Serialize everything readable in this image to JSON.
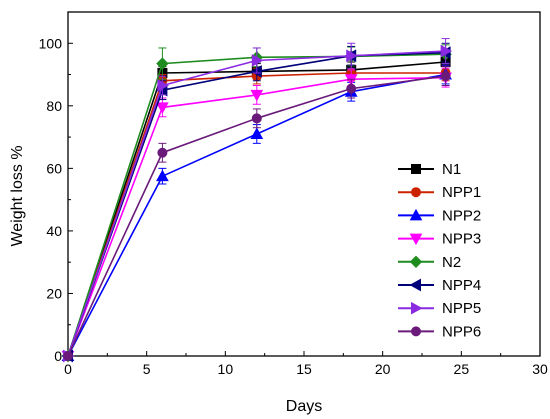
{
  "chart_data": {
    "type": "line",
    "xlabel": "Days",
    "ylabel": "Weight loss %",
    "xlim": [
      0,
      30
    ],
    "ylim": [
      0,
      110
    ],
    "xticks": [
      0,
      5,
      10,
      15,
      20,
      25,
      30
    ],
    "yticks": [
      0,
      20,
      40,
      60,
      80,
      100
    ],
    "grid": false,
    "legend_position": "right",
    "x": [
      0,
      6,
      12,
      18,
      24
    ],
    "series": [
      {
        "name": "N1",
        "color": "#000000",
        "marker": "square",
        "values": [
          0,
          90.5,
          91,
          91.5,
          94
        ],
        "errors": [
          0,
          2,
          2.5,
          2.5,
          2.5
        ]
      },
      {
        "name": "NPP1",
        "color": "#cc2200",
        "marker": "circle",
        "values": [
          0,
          88,
          89.5,
          90.5,
          90.5
        ],
        "errors": [
          0,
          2,
          2.5,
          2.5,
          2.5
        ]
      },
      {
        "name": "NPP2",
        "color": "#0000ff",
        "marker": "triangle-up",
        "values": [
          0,
          57.5,
          71,
          84.5,
          90
        ],
        "errors": [
          0,
          2.5,
          3,
          3,
          3
        ]
      },
      {
        "name": "NPP3",
        "color": "#ff00ff",
        "marker": "triangle-down",
        "values": [
          0,
          79.5,
          83.5,
          88.5,
          89
        ],
        "errors": [
          0,
          3,
          3,
          3,
          3
        ]
      },
      {
        "name": "N2",
        "color": "#1e8c1e",
        "marker": "diamond",
        "values": [
          0,
          93.5,
          95.5,
          95.8,
          96.5
        ],
        "errors": [
          0,
          5,
          3,
          3,
          3
        ]
      },
      {
        "name": "NPP4",
        "color": "#00007a",
        "marker": "triangle-left",
        "values": [
          0,
          85,
          91,
          96,
          97
        ],
        "errors": [
          0,
          3,
          3,
          3,
          3
        ]
      },
      {
        "name": "NPP5",
        "color": "#8a2be2",
        "marker": "triangle-right",
        "values": [
          0,
          86.5,
          94.5,
          96,
          97.5
        ],
        "errors": [
          0,
          3,
          4,
          4,
          4
        ]
      },
      {
        "name": "NPP6",
        "color": "#6a1b7a",
        "marker": "circle",
        "values": [
          0,
          65,
          76,
          85.5,
          89.5
        ],
        "errors": [
          0,
          3,
          3,
          3,
          3
        ]
      }
    ]
  }
}
